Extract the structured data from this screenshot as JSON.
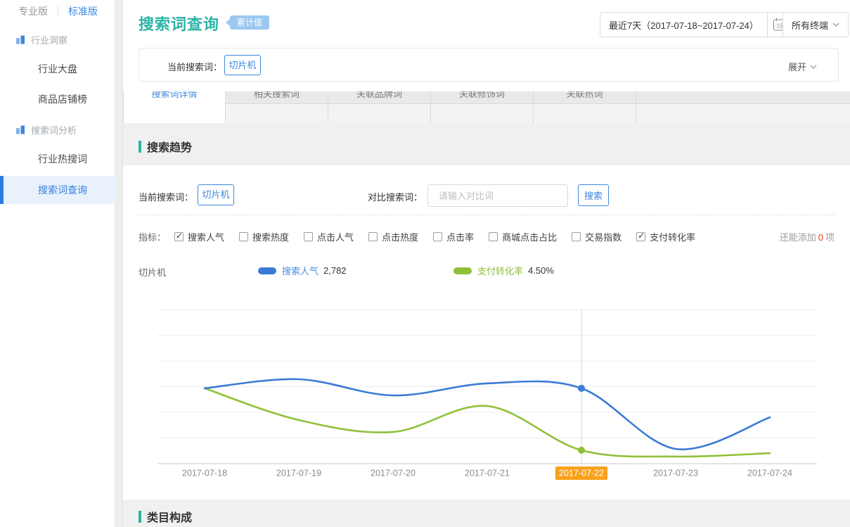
{
  "sidebar": {
    "version_tabs": [
      {
        "label": "专业版",
        "active": false
      },
      {
        "label": "标准版",
        "active": true
      }
    ],
    "groups": [
      {
        "label": "行业洞察",
        "items": [
          {
            "label": "行业大盘"
          },
          {
            "label": "商品店铺榜"
          }
        ]
      },
      {
        "label": "搜索词分析",
        "items": [
          {
            "label": "行业热搜词"
          },
          {
            "label": "搜索词查询",
            "active": true
          }
        ]
      }
    ]
  },
  "header": {
    "title": "搜索词查询",
    "badge": "累计值",
    "date_range": "最近7天（2017-07-18~2017-07-24）",
    "calendar_day": "15",
    "terminal": "所有终端"
  },
  "filter": {
    "current_label": "当前搜索词：",
    "keyword": "切片机",
    "expand": "展开"
  },
  "tabs": {
    "items": [
      {
        "label": "搜索词详情",
        "active": true
      },
      {
        "label": "相关搜索词",
        "active": false
      },
      {
        "label": "关联品牌词",
        "active": false
      },
      {
        "label": "关联修饰词",
        "active": false
      },
      {
        "label": "关联热词",
        "active": false
      }
    ]
  },
  "trend": {
    "section_title": "搜索趋势",
    "current_label": "当前搜索词：",
    "keyword": "切片机",
    "compare_label": "对比搜索词：",
    "compare_placeholder": "请输入对比词",
    "search_button": "搜索",
    "metrics": {
      "caption": "指标：",
      "items": [
        {
          "label": "搜索人气",
          "checked": true
        },
        {
          "label": "搜索热度",
          "checked": false
        },
        {
          "label": "点击人气",
          "checked": false
        },
        {
          "label": "点击热度",
          "checked": false
        },
        {
          "label": "点击率",
          "checked": false
        },
        {
          "label": "商城点击占比",
          "checked": false
        },
        {
          "label": "交易指数",
          "checked": false
        },
        {
          "label": "支付转化率",
          "checked": true
        }
      ],
      "add_hint_prefix": "还能添加",
      "add_count": "0",
      "add_hint_suffix": "项"
    },
    "legend": {
      "keyword": "切片机",
      "series1_label": "搜索人气",
      "series1_value": "2,782",
      "series2_label": "支付转化率",
      "series2_value": "4.50%"
    }
  },
  "category_section": {
    "title": "类目构成"
  },
  "colors": {
    "accent_blue": "#3d87dd",
    "teal": "#2cb3a7",
    "badge_blue": "#9cc8ef",
    "highlight_orange": "#f9a11b",
    "red_count": "#f43c00"
  },
  "chart_data": {
    "type": "line",
    "title": "搜索趋势",
    "categories": [
      "2017-07-18",
      "2017-07-19",
      "2017-07-20",
      "2017-07-21",
      "2017-07-22",
      "2017-07-23",
      "2017-07-24"
    ],
    "highlighted_category_index": 4,
    "highlight_color": "#f9a11b",
    "grid": true,
    "y_axis_labels_visible": false,
    "series": [
      {
        "name": "搜索人气",
        "keyword": "切片机",
        "color": "#3a7bd5",
        "values_norm_from_top": [
          0.511,
          0.452,
          0.557,
          0.479,
          0.511,
          0.904,
          0.699
        ],
        "marker_index": 4,
        "value_at_marker": "2,782"
      },
      {
        "name": "支付转化率",
        "keyword": "切片机",
        "color": "#8fc138",
        "values_norm_from_top": [
          0.511,
          0.717,
          0.794,
          0.626,
          0.913,
          0.954,
          0.932
        ],
        "marker_index": 4,
        "value_at_marker": "4.50%"
      }
    ]
  }
}
